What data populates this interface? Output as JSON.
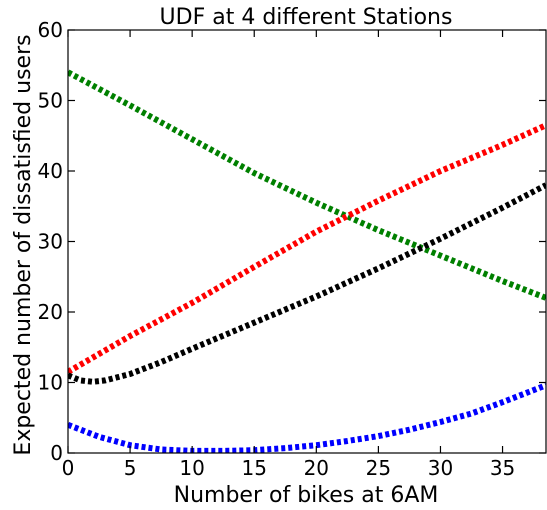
{
  "chart_data": {
    "type": "line",
    "title": "UDF at 4 different Stations",
    "xlabel": "Number of bikes at 6AM",
    "ylabel": "Expected number of dissatisfied users",
    "xlim": [
      0,
      38.5
    ],
    "ylim": [
      0,
      60
    ],
    "xticks": [
      0,
      5,
      10,
      15,
      20,
      25,
      30,
      35
    ],
    "yticks": [
      0,
      10,
      20,
      30,
      40,
      50,
      60
    ],
    "xtick_labels": [
      "0",
      "5",
      "10",
      "15",
      "20",
      "25",
      "30",
      "35"
    ],
    "ytick_labels": [
      "0",
      "10",
      "20",
      "30",
      "40",
      "50",
      "60"
    ],
    "grid": false,
    "legend": false,
    "line_style": "dotted",
    "series": [
      {
        "color": "#008000",
        "x": [
          0,
          5,
          10,
          15,
          20,
          25,
          30,
          35,
          38.5
        ],
        "y": [
          54,
          49.3,
          44.5,
          39.7,
          35.5,
          31.6,
          28.0,
          24.4,
          22
        ]
      },
      {
        "color": "#ff0000",
        "x": [
          0,
          5,
          10,
          15,
          20,
          25,
          30,
          35,
          38.5
        ],
        "y": [
          11.5,
          16.6,
          21.3,
          26.4,
          31.4,
          35.8,
          40.0,
          43.7,
          46.5
        ]
      },
      {
        "color": "#000000",
        "x": [
          0,
          1,
          2,
          3,
          5,
          7.5,
          10,
          15,
          20,
          25,
          30,
          35,
          38.5
        ],
        "y": [
          11,
          10.3,
          10.1,
          10.3,
          11.2,
          12.9,
          14.8,
          18.5,
          22.2,
          26.2,
          30.4,
          34.8,
          38
        ]
      },
      {
        "color": "#0000ff",
        "x": [
          0,
          2.5,
          5,
          7.5,
          10,
          12.5,
          15,
          17.5,
          20,
          22.5,
          25,
          27.5,
          30,
          32.5,
          35,
          38.5
        ],
        "y": [
          4,
          2.3,
          1.1,
          0.5,
          0.3,
          0.3,
          0.4,
          0.7,
          1.1,
          1.7,
          2.4,
          3.3,
          4.4,
          5.6,
          7.2,
          9.6
        ]
      }
    ]
  }
}
